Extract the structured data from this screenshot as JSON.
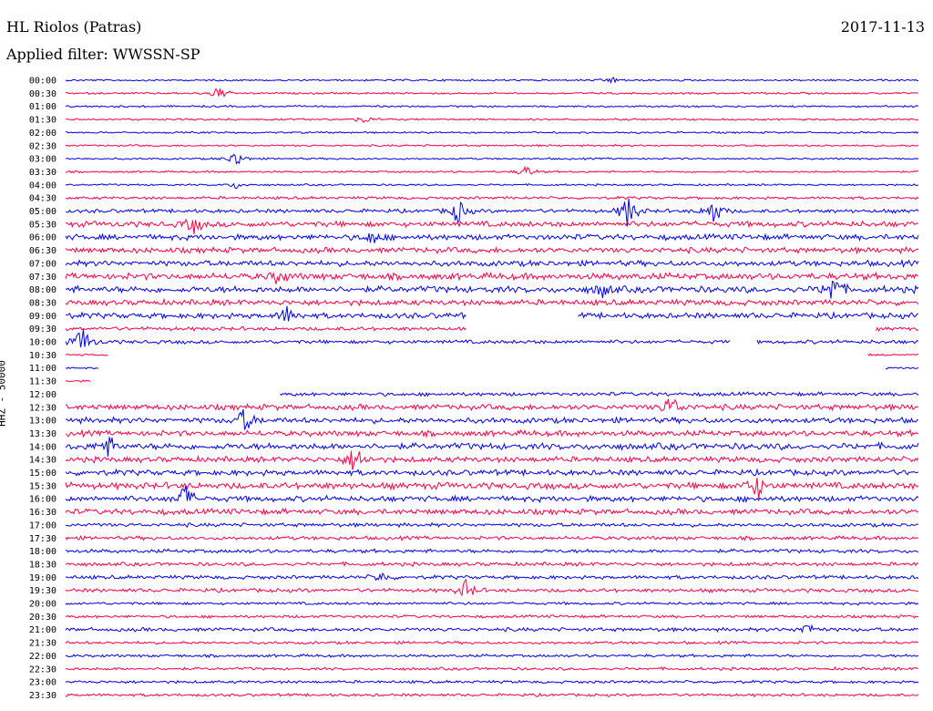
{
  "header": {
    "station": "HL Riolos (Patras)",
    "filter": "Applied filter: WWSSN-SP",
    "date": "2017-11-13"
  },
  "colors": {
    "trace_a": "#0000ee",
    "trace_b": "#ff0044",
    "text": "#000000"
  },
  "chart_data": {
    "type": "line",
    "title": "HL Riolos (Patras)",
    "subtitle": "Applied filter: WWSSN-SP",
    "ylabel": "HHZ - 50000",
    "xlabel": "",
    "grid": false,
    "legend": "none",
    "rows": [
      "00:00",
      "00:30",
      "01:00",
      "01:30",
      "02:00",
      "02:30",
      "03:00",
      "03:30",
      "04:00",
      "04:30",
      "05:00",
      "05:30",
      "06:00",
      "06:30",
      "07:00",
      "07:30",
      "08:00",
      "08:30",
      "09:00",
      "09:30",
      "10:00",
      "10:30",
      "11:00",
      "11:30",
      "12:00",
      "12:30",
      "13:00",
      "13:30",
      "14:00",
      "14:30",
      "15:00",
      "15:30",
      "16:00",
      "16:30",
      "17:00",
      "17:30",
      "18:00",
      "18:30",
      "19:00",
      "19:30",
      "20:00",
      "20:30",
      "21:00",
      "21:30",
      "22:00",
      "22:30",
      "23:00",
      "23:30"
    ],
    "row_color_pattern": [
      "trace_a",
      "trace_b"
    ],
    "noise_level": [
      1,
      1,
      1,
      1,
      1,
      1,
      1,
      1,
      1,
      1.5,
      2,
      3,
      3,
      3,
      3,
      3.5,
      3.5,
      3,
      3,
      2,
      2,
      1,
      1,
      1,
      2,
      3,
      3,
      3,
      3.5,
      3,
      3,
      3.5,
      3,
      3,
      2,
      2,
      2,
      2,
      2,
      2,
      1.5,
      1.5,
      2,
      1.5,
      1.5,
      1.5,
      1.5,
      1.5
    ],
    "gaps": [
      {
        "row": "09:00",
        "from": 0.47,
        "to": 0.6
      },
      {
        "row": "09:30",
        "from": 0.47,
        "to": 0.95
      },
      {
        "row": "10:00",
        "from": 0.78,
        "to": 0.81
      },
      {
        "row": "10:30",
        "from": 0.05,
        "to": 0.94
      },
      {
        "row": "11:00",
        "from": 0.04,
        "to": 0.96
      },
      {
        "row": "11:30",
        "from": 0.03,
        "to": 1.0
      },
      {
        "row": "12:00",
        "from": 0.0,
        "to": 0.25
      }
    ],
    "events": [
      {
        "row": "00:00",
        "pos": 0.64,
        "amp": 4
      },
      {
        "row": "00:30",
        "pos": 0.18,
        "amp": 8
      },
      {
        "row": "01:30",
        "pos": 0.35,
        "amp": 4
      },
      {
        "row": "03:00",
        "pos": 0.2,
        "amp": 10
      },
      {
        "row": "03:30",
        "pos": 0.54,
        "amp": 7
      },
      {
        "row": "04:00",
        "pos": 0.2,
        "amp": 4
      },
      {
        "row": "05:00",
        "pos": 0.46,
        "amp": 14
      },
      {
        "row": "05:00",
        "pos": 0.66,
        "amp": 20
      },
      {
        "row": "05:00",
        "pos": 0.76,
        "amp": 16
      },
      {
        "row": "05:30",
        "pos": 0.15,
        "amp": 10
      },
      {
        "row": "06:00",
        "pos": 0.36,
        "amp": 8
      },
      {
        "row": "07:30",
        "pos": 0.25,
        "amp": 8
      },
      {
        "row": "08:00",
        "pos": 0.63,
        "amp": 8
      },
      {
        "row": "08:00",
        "pos": 0.9,
        "amp": 18
      },
      {
        "row": "09:00",
        "pos": 0.26,
        "amp": 10
      },
      {
        "row": "10:00",
        "pos": 0.02,
        "amp": 18
      },
      {
        "row": "12:30",
        "pos": 0.71,
        "amp": 14
      },
      {
        "row": "13:00",
        "pos": 0.21,
        "amp": 14
      },
      {
        "row": "14:00",
        "pos": 0.05,
        "amp": 12
      },
      {
        "row": "14:30",
        "pos": 0.34,
        "amp": 18
      },
      {
        "row": "15:30",
        "pos": 0.81,
        "amp": 16
      },
      {
        "row": "16:00",
        "pos": 0.14,
        "amp": 16
      },
      {
        "row": "19:00",
        "pos": 0.37,
        "amp": 6
      },
      {
        "row": "19:30",
        "pos": 0.47,
        "amp": 12
      },
      {
        "row": "21:00",
        "pos": 0.87,
        "amp": 8
      }
    ]
  }
}
